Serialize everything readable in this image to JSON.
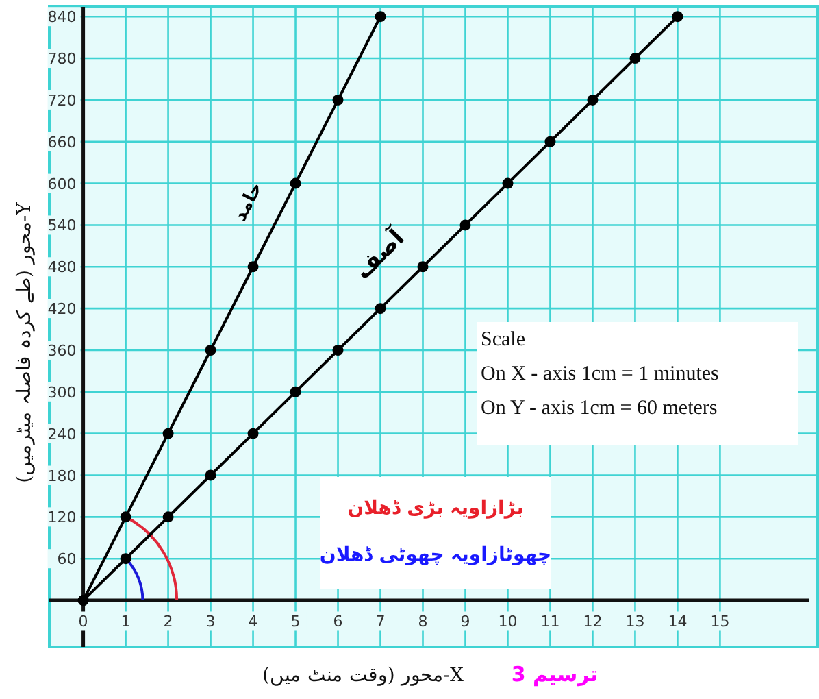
{
  "chart_data": {
    "type": "line",
    "title": "ترسیم 3",
    "xlabel": "X-محور (وقت منٹ میں)",
    "ylabel": "Y-محور (طے کردہ فاصلہ میٹرمیں)",
    "series": [
      {
        "name": "حامد",
        "color": "#000000",
        "x": [
          0,
          1,
          2,
          3,
          4,
          5,
          6,
          7
        ],
        "values": [
          0,
          120,
          240,
          360,
          480,
          600,
          720,
          840
        ]
      },
      {
        "name": "آصف",
        "color": "#000000",
        "x": [
          0,
          1,
          2,
          3,
          4,
          5,
          6,
          7,
          8,
          9,
          10,
          11,
          12,
          13,
          14
        ],
        "values": [
          0,
          60,
          120,
          180,
          240,
          300,
          360,
          420,
          480,
          540,
          600,
          660,
          720,
          780,
          840
        ]
      }
    ],
    "xlim": [
      -0.8,
      17.3
    ],
    "ylim": [
      -67,
      854
    ],
    "xticks": [
      0,
      1,
      2,
      3,
      4,
      5,
      6,
      7,
      8,
      9,
      10,
      11,
      12,
      13,
      14,
      15
    ],
    "yticks": [
      60,
      120,
      180,
      240,
      300,
      360,
      420,
      480,
      540,
      600,
      660,
      720,
      780,
      840
    ],
    "annotations": [
      "Scale\nOn X - axis 1cm = 1 minutes\nOn Y - axis 1cm = 60 meters",
      "بڑازاویہ بڑی ڈھلان",
      "چھوٹازاویہ چھوٹی ڈھلان"
    ],
    "grid": true,
    "marker": "circle",
    "line_style": "solid"
  }
}
